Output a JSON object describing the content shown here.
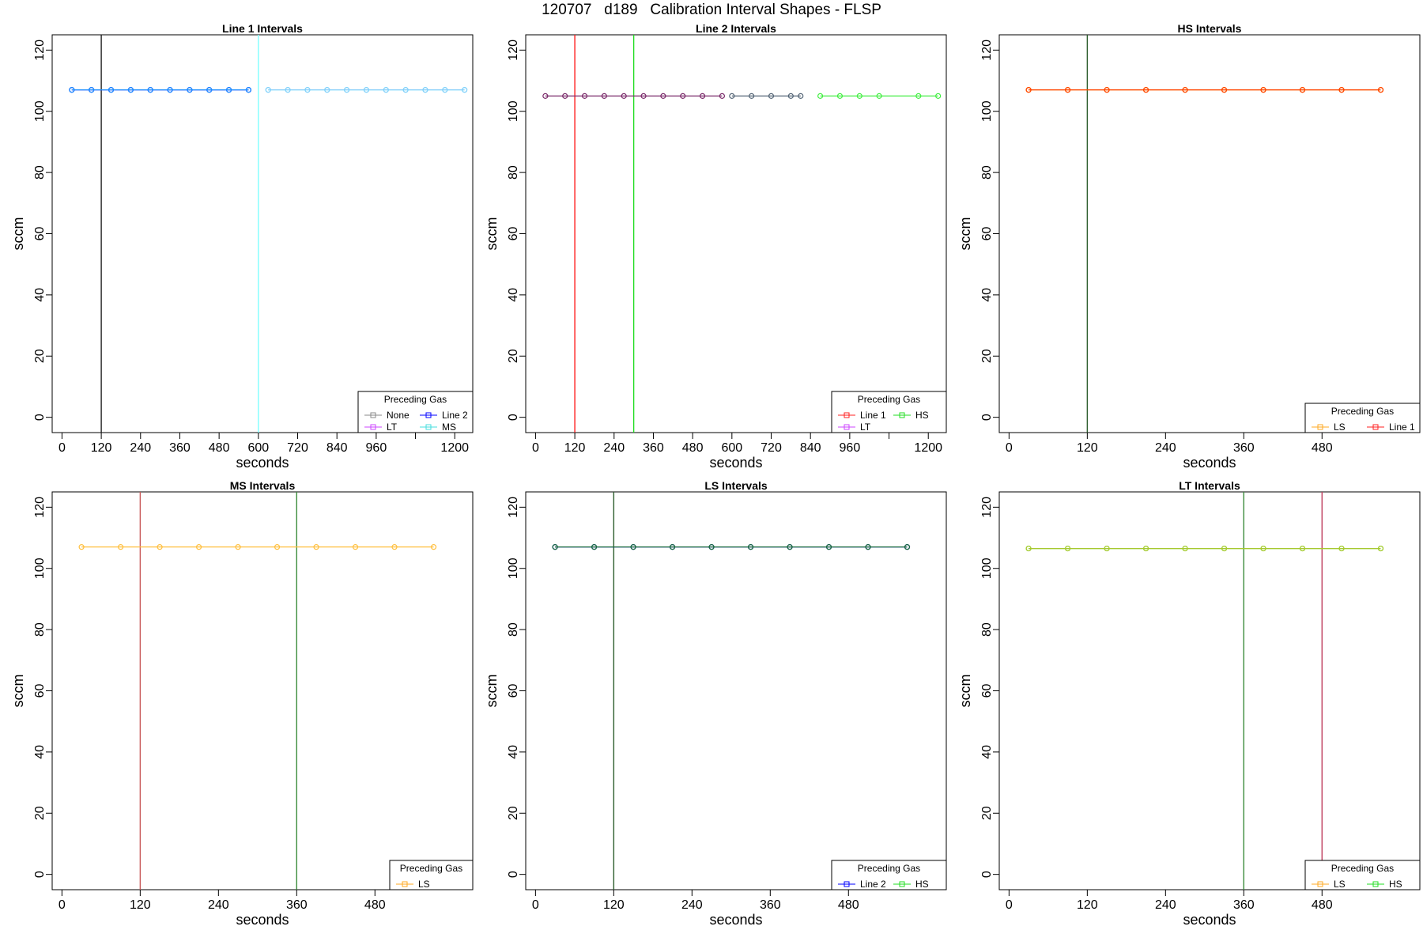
{
  "figure": {
    "title": "120707   d189   Calibration Interval Shapes - FLSP"
  },
  "chart_data": [
    {
      "type": "line",
      "title": "Line 1 Intervals",
      "xlabel": "seconds",
      "ylabel": "sccm",
      "xlim": [
        -30,
        1255
      ],
      "ylim": [
        -5,
        125
      ],
      "xticks": [
        0,
        120,
        240,
        360,
        480,
        600,
        720,
        840,
        960,
        1080,
        1200
      ],
      "xtick_labels": [
        "0",
        "120",
        "240",
        "360",
        "480",
        "600",
        "720",
        "840",
        "960",
        "",
        "1200"
      ],
      "yticks": [
        0,
        20,
        40,
        60,
        80,
        100,
        120
      ],
      "vlines": [
        {
          "x": 120,
          "color": "#222222"
        },
        {
          "x": 600,
          "color": "#80ffff"
        }
      ],
      "series": [
        {
          "color": "#0000ff",
          "x": [
            30,
            90,
            150,
            210,
            270,
            330,
            390,
            450,
            510,
            570
          ],
          "y": [
            107,
            107,
            107,
            107,
            107,
            107,
            107,
            107,
            107,
            107
          ]
        },
        {
          "color": "#1e90ff",
          "x": [
            30,
            90,
            150,
            210,
            270,
            330,
            390,
            450,
            510,
            570
          ],
          "y": [
            107,
            107,
            107,
            107,
            107,
            107,
            107,
            107,
            107,
            107
          ]
        },
        {
          "color": "#80ffff",
          "x": [
            630,
            690,
            750,
            810,
            870,
            930,
            990,
            1050,
            1110,
            1170,
            1230
          ],
          "y": [
            107,
            107,
            107,
            107,
            107,
            107,
            107,
            107,
            107,
            107,
            107
          ]
        },
        {
          "color": "#87cefa",
          "x": [
            630,
            690,
            750,
            810,
            870,
            930,
            990,
            1050,
            1110,
            1170,
            1230
          ],
          "y": [
            107,
            107,
            107,
            107,
            107,
            107,
            107,
            107,
            107,
            107,
            107
          ]
        }
      ],
      "legend": {
        "title": "Preceding Gas",
        "placement": "bottom-right",
        "columns": 2,
        "entries": [
          {
            "name": "None",
            "color": "#888888"
          },
          {
            "name": "Line 2",
            "color": "#0000ff"
          },
          {
            "name": "LT",
            "color": "#cc44ff"
          },
          {
            "name": "MS",
            "color": "#44dddd"
          }
        ]
      }
    },
    {
      "type": "line",
      "title": "Line 2 Intervals",
      "xlabel": "seconds",
      "ylabel": "sccm",
      "xlim": [
        -30,
        1255
      ],
      "ylim": [
        -5,
        125
      ],
      "xticks": [
        0,
        120,
        240,
        360,
        480,
        600,
        720,
        840,
        960,
        1080,
        1200
      ],
      "xtick_labels": [
        "0",
        "120",
        "240",
        "360",
        "480",
        "600",
        "720",
        "840",
        "960",
        "",
        "1200"
      ],
      "yticks": [
        0,
        20,
        40,
        60,
        80,
        100,
        120
      ],
      "vlines": [
        {
          "x": 120,
          "color": "#ff2020"
        },
        {
          "x": 300,
          "color": "#22dd22"
        }
      ],
      "series": [
        {
          "color": "#7a2a6a",
          "x": [
            30,
            90,
            150,
            210,
            270,
            330,
            390,
            450,
            510,
            570
          ],
          "y": [
            105,
            105,
            105,
            105,
            105,
            105,
            105,
            105,
            105,
            105
          ]
        },
        {
          "color": "#556677",
          "x": [
            600,
            660,
            720,
            780,
            810
          ],
          "y": [
            105,
            105,
            105,
            105,
            105
          ]
        },
        {
          "color": "#44ee44",
          "x": [
            870,
            930,
            990,
            1050,
            1170,
            1230
          ],
          "y": [
            105,
            105,
            105,
            105,
            105,
            105
          ]
        }
      ],
      "legend": {
        "title": "Preceding Gas",
        "placement": "bottom-right",
        "columns": 2,
        "entries": [
          {
            "name": "Line 1",
            "color": "#ff2020"
          },
          {
            "name": "HS",
            "color": "#22dd22"
          },
          {
            "name": "LT",
            "color": "#cc44ff"
          }
        ]
      }
    },
    {
      "type": "line",
      "title": "HS Intervals",
      "xlabel": "seconds",
      "ylabel": "sccm",
      "xlim": [
        -15,
        630
      ],
      "ylim": [
        -5,
        125
      ],
      "xticks": [
        0,
        120,
        240,
        360,
        480
      ],
      "xtick_labels": [
        "0",
        "120",
        "240",
        "360",
        "480"
      ],
      "yticks": [
        0,
        20,
        40,
        60,
        80,
        100,
        120
      ],
      "vlines": [
        {
          "x": 120,
          "color": "#2e5e2e"
        }
      ],
      "series": [
        {
          "color": "#ff7f00",
          "x": [
            30,
            90,
            150,
            210,
            270,
            330,
            390,
            450,
            510,
            570
          ],
          "y": [
            107,
            107,
            107,
            107,
            107,
            107,
            107,
            107,
            107,
            107
          ]
        },
        {
          "color": "#ff4500",
          "x": [
            30,
            90,
            150,
            210,
            270,
            330,
            390,
            450,
            510,
            570
          ],
          "y": [
            107,
            107,
            107,
            107,
            107,
            107,
            107,
            107,
            107,
            107
          ]
        }
      ],
      "legend": {
        "title": "Preceding Gas",
        "placement": "bottom-right",
        "columns": 2,
        "entries": [
          {
            "name": "LS",
            "color": "#ffaa22"
          },
          {
            "name": "Line 1",
            "color": "#ff2020"
          }
        ]
      }
    },
    {
      "type": "line",
      "title": "MS Intervals",
      "xlabel": "seconds",
      "ylabel": "sccm",
      "xlim": [
        -15,
        630
      ],
      "ylim": [
        -5,
        125
      ],
      "xticks": [
        0,
        120,
        240,
        360,
        480
      ],
      "xtick_labels": [
        "0",
        "120",
        "240",
        "360",
        "480"
      ],
      "yticks": [
        0,
        20,
        40,
        60,
        80,
        100,
        120
      ],
      "vlines": [
        {
          "x": 120,
          "color": "#c85a5a"
        },
        {
          "x": 360,
          "color": "#3c8c3c"
        }
      ],
      "series": [
        {
          "color": "#ffc040",
          "x": [
            30,
            90,
            150,
            210,
            270,
            330,
            390,
            450,
            510,
            570
          ],
          "y": [
            107,
            107,
            107,
            107,
            107,
            107,
            107,
            107,
            107,
            107
          ]
        }
      ],
      "legend": {
        "title": "Preceding Gas",
        "placement": "bottom-right",
        "columns": 1,
        "entries": [
          {
            "name": "LS",
            "color": "#ffaa22"
          }
        ]
      }
    },
    {
      "type": "line",
      "title": "LS Intervals",
      "xlabel": "seconds",
      "ylabel": "sccm",
      "xlim": [
        -15,
        630
      ],
      "ylim": [
        -5,
        125
      ],
      "xticks": [
        0,
        120,
        240,
        360,
        480
      ],
      "xtick_labels": [
        "0",
        "120",
        "240",
        "360",
        "480"
      ],
      "yticks": [
        0,
        20,
        40,
        60,
        80,
        100,
        120
      ],
      "vlines": [
        {
          "x": 120,
          "color": "#2e5e2e"
        }
      ],
      "series": [
        {
          "color": "#0000cc",
          "x": [
            30,
            90,
            150,
            210,
            270,
            330,
            390,
            450,
            510,
            570
          ],
          "y": [
            107,
            107,
            107,
            107,
            107,
            107,
            107,
            107,
            107,
            107
          ]
        },
        {
          "color": "#1e6e3e",
          "x": [
            30,
            90,
            150,
            210,
            270,
            330,
            390,
            450,
            510,
            570
          ],
          "y": [
            107,
            107,
            107,
            107,
            107,
            107,
            107,
            107,
            107,
            107
          ]
        }
      ],
      "legend": {
        "title": "Preceding Gas",
        "placement": "bottom-right",
        "columns": 2,
        "entries": [
          {
            "name": "Line 2",
            "color": "#0000ff"
          },
          {
            "name": "HS",
            "color": "#22dd22"
          }
        ]
      }
    },
    {
      "type": "line",
      "title": "LT Intervals",
      "xlabel": "seconds",
      "ylabel": "sccm",
      "xlim": [
        -15,
        630
      ],
      "ylim": [
        -5,
        125
      ],
      "xticks": [
        0,
        120,
        240,
        360,
        480
      ],
      "xtick_labels": [
        "0",
        "120",
        "240",
        "360",
        "480"
      ],
      "yticks": [
        0,
        20,
        40,
        60,
        80,
        100,
        120
      ],
      "vlines": [
        {
          "x": 360,
          "color": "#3c8c3c"
        },
        {
          "x": 480,
          "color": "#c04060"
        }
      ],
      "series": [
        {
          "color": "#88ee44",
          "x": [
            30,
            90,
            150,
            210,
            270,
            330,
            390,
            450,
            510,
            570
          ],
          "y": [
            106.5,
            106.5,
            106.5,
            106.5,
            106.5,
            106.5,
            106.5,
            106.5,
            106.5,
            106.5
          ]
        },
        {
          "color": "#a8c830",
          "x": [
            30,
            90,
            150,
            210,
            270,
            330,
            390,
            450,
            510,
            570
          ],
          "y": [
            106.5,
            106.5,
            106.5,
            106.5,
            106.5,
            106.5,
            106.5,
            106.5,
            106.5,
            106.5
          ]
        }
      ],
      "legend": {
        "title": "Preceding Gas",
        "placement": "bottom-right",
        "columns": 2,
        "entries": [
          {
            "name": "LS",
            "color": "#ffaa22"
          },
          {
            "name": "HS",
            "color": "#22dd22"
          }
        ]
      }
    }
  ]
}
